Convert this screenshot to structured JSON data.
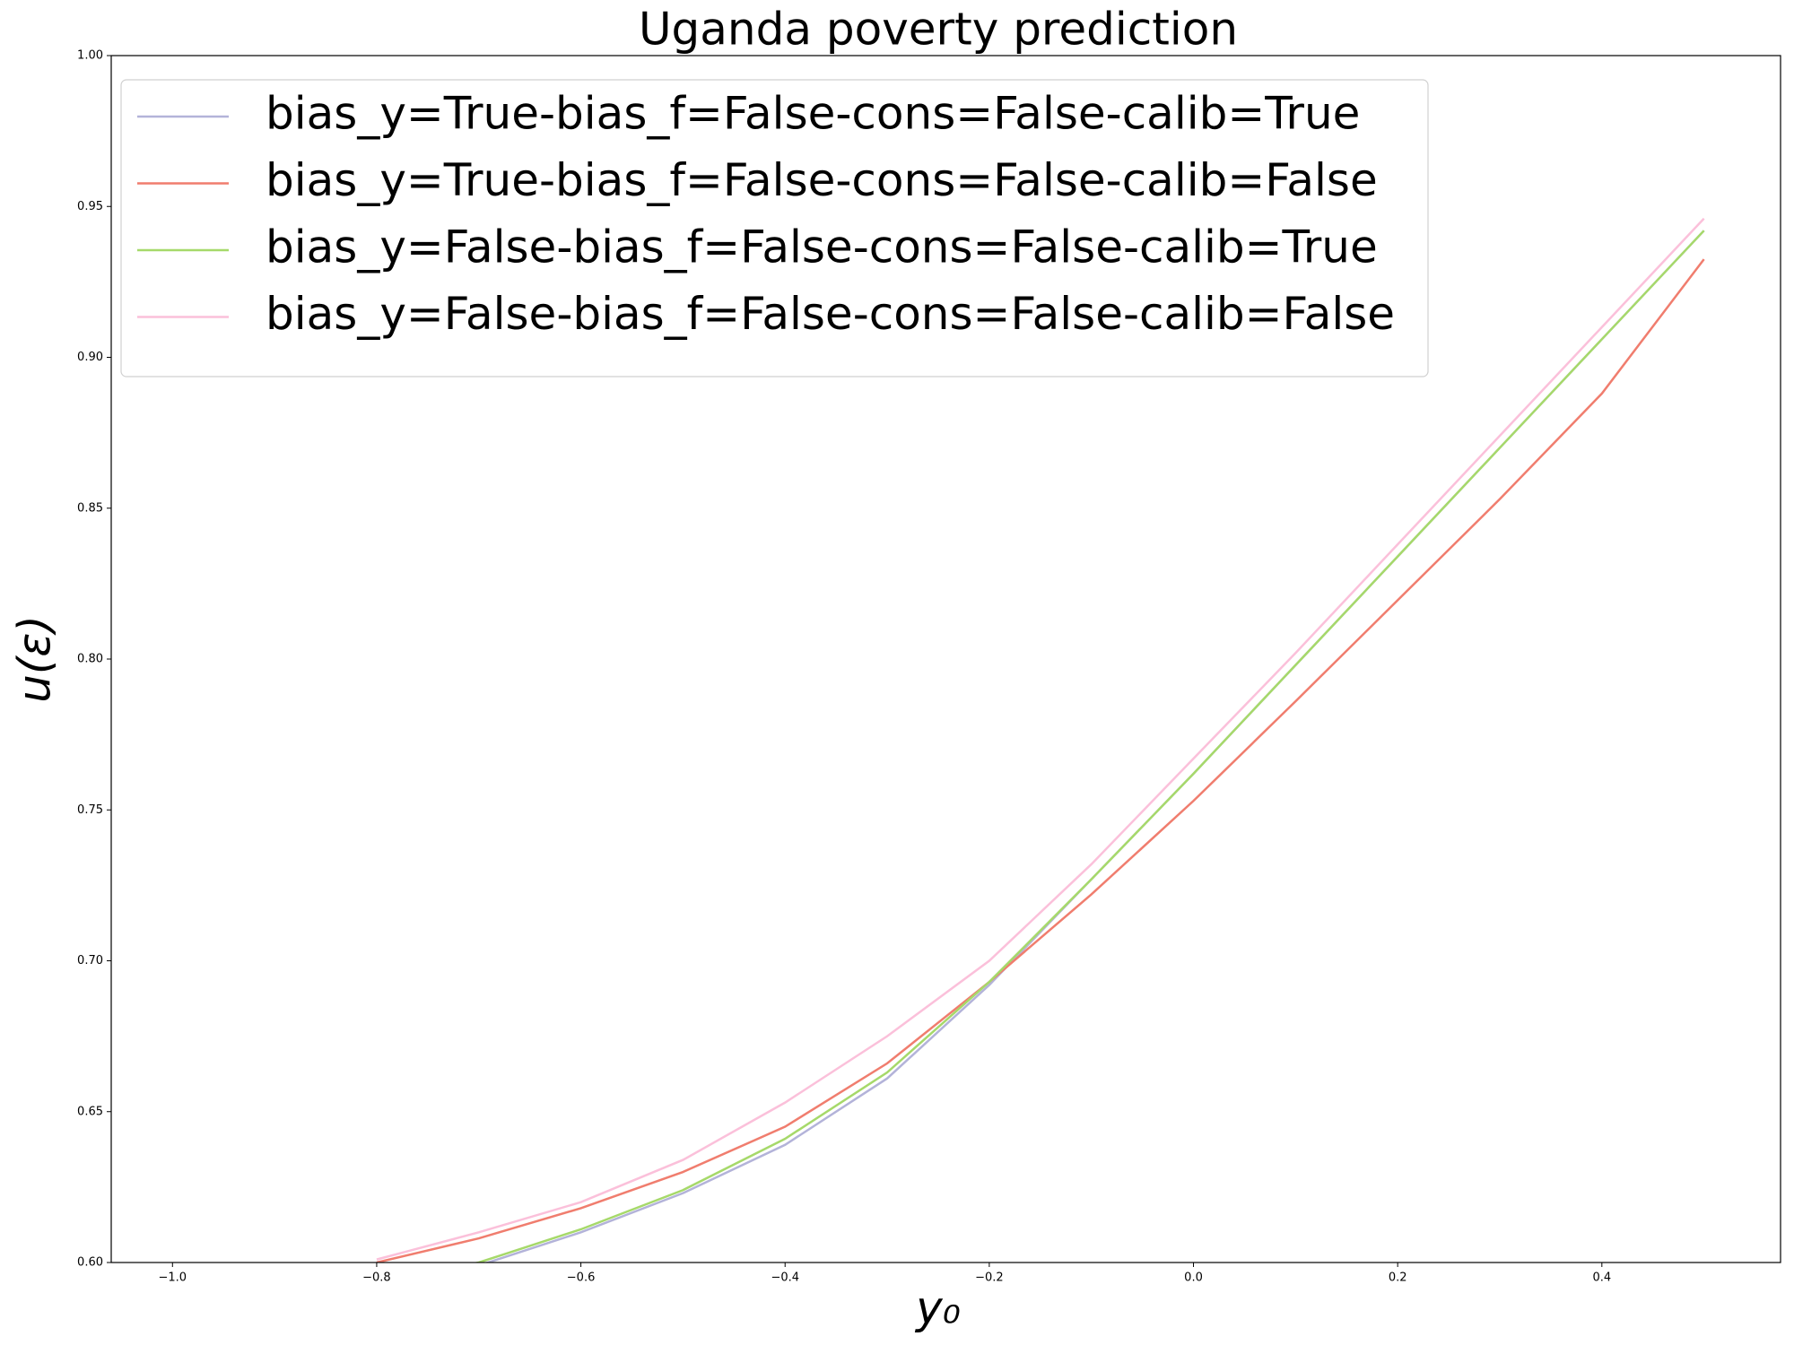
{
  "chart_data": {
    "type": "line",
    "title": "Uganda poverty prediction",
    "xlabel": "y₀",
    "ylabel": "u(ε)",
    "x": [
      -0.8,
      -0.7,
      -0.6,
      -0.5,
      -0.4,
      -0.3,
      -0.2,
      -0.1,
      0.0,
      0.1,
      0.2,
      0.3,
      0.4,
      0.5
    ],
    "series": [
      {
        "name": "bias_y=True-bias_f=False-cons=False-calib=True",
        "color": "#b3b3d9",
        "values": [
          0.592,
          0.599,
          0.61,
          0.623,
          0.639,
          0.661,
          0.692,
          0.727,
          0.762,
          0.798,
          0.834,
          0.87,
          0.906,
          0.942
        ]
      },
      {
        "name": "bias_y=True-bias_f=False-cons=False-calib=False",
        "color": "#f07d6e",
        "values": [
          0.6,
          0.608,
          0.618,
          0.63,
          0.645,
          0.666,
          0.693,
          0.722,
          0.753,
          0.786,
          0.8195,
          0.853,
          0.888,
          0.9325
        ]
      },
      {
        "name": "bias_y=False-bias_f=False-cons=False-calib=True",
        "color": "#a6d96a",
        "values": [
          0.593,
          0.6,
          0.611,
          0.624,
          0.641,
          0.663,
          0.693,
          0.727,
          0.762,
          0.798,
          0.834,
          0.87,
          0.906,
          0.942
        ]
      },
      {
        "name": "bias_y=False-bias_f=False-cons=False-calib=False",
        "color": "#fbc0da",
        "values": [
          0.601,
          0.61,
          0.62,
          0.634,
          0.653,
          0.675,
          0.7,
          0.732,
          0.767,
          0.802,
          0.838,
          0.874,
          0.91,
          0.946
        ]
      }
    ],
    "xlim": [
      -1.06,
      0.575
    ],
    "ylim": [
      0.6,
      1.0
    ],
    "xticks": [
      -1.0,
      -0.8,
      -0.6,
      -0.4,
      -0.2,
      0.0,
      0.2,
      0.4
    ],
    "yticks": [
      {
        "value": 0.6,
        "label": "0.60"
      },
      {
        "value": 0.65,
        "label": "0.65"
      },
      {
        "value": 0.7,
        "label": "0.70"
      },
      {
        "value": 0.75,
        "label": "0.75"
      },
      {
        "value": 0.8,
        "label": "0.80"
      },
      {
        "value": 0.85,
        "label": "0.85"
      },
      {
        "value": 0.9,
        "label": "0.90"
      },
      {
        "value": 0.95,
        "label": "0.95"
      },
      {
        "value": 1.0,
        "label": "1.00"
      }
    ],
    "xtick_labels": [
      "−1.0",
      "−0.8",
      "−0.6",
      "−0.4",
      "−0.2",
      "0.0",
      "0.2",
      "0.4"
    ],
    "legend": "upper left",
    "grid": false
  }
}
